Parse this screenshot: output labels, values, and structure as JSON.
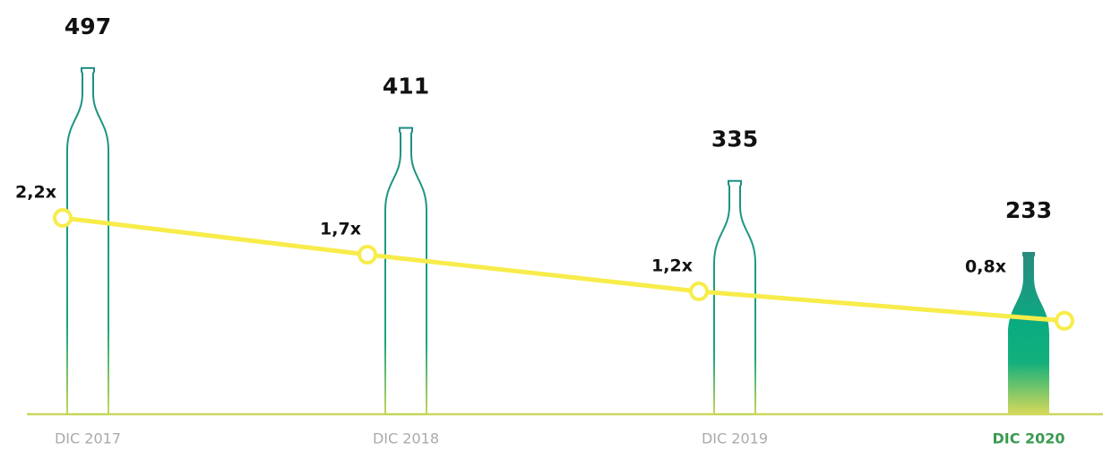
{
  "chart_data": {
    "type": "bar",
    "categories": [
      "DIC 2017",
      "DIC 2018",
      "DIC 2019",
      "DIC 2020"
    ],
    "series": [
      {
        "type": "bar",
        "values": [
          497,
          411,
          335,
          233
        ],
        "color": "#1a9a86"
      },
      {
        "type": "line",
        "values": [
          2.2,
          1.7,
          1.2,
          0.8
        ],
        "value_labels": [
          "2,2x",
          "1,7x",
          "1,2x",
          "0,8x"
        ],
        "color": "#f7ec4a"
      }
    ]
  }
}
